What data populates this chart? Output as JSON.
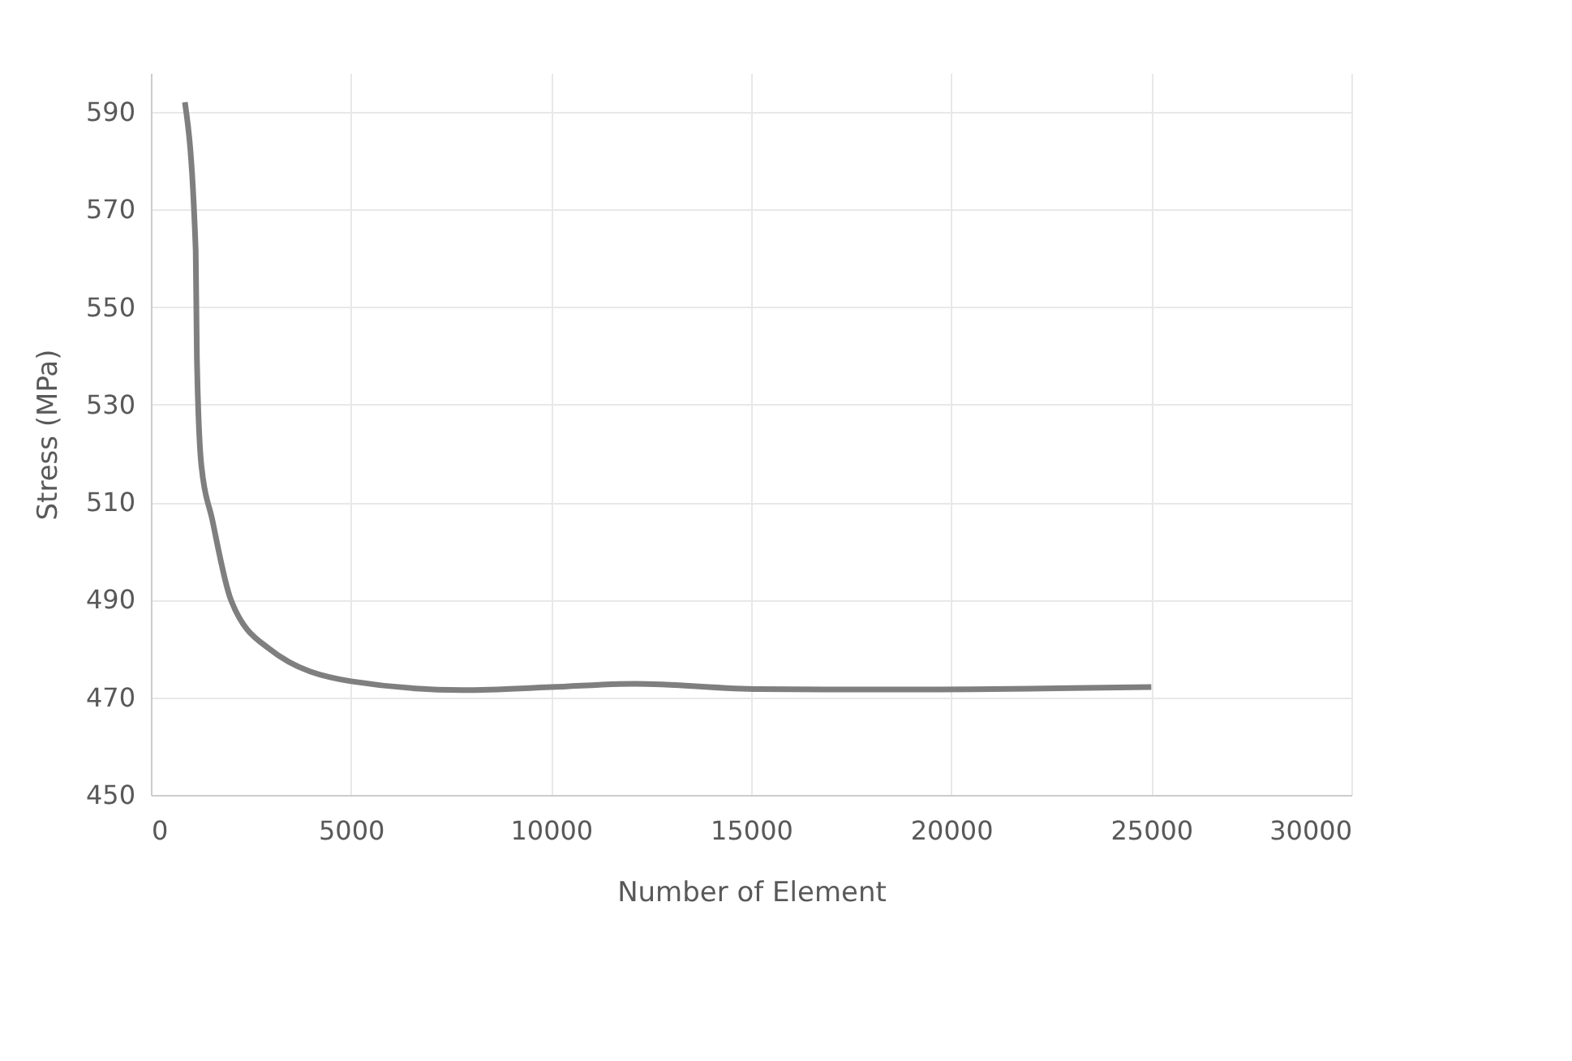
{
  "chart_data": {
    "type": "line",
    "xlabel": "Number of Element",
    "ylabel": "Stress (MPa)",
    "x": [
      850,
      1120,
      1150,
      1260,
      1530,
      2000,
      2950,
      5000,
      7800,
      10000,
      12100,
      15200,
      18600,
      25000
    ],
    "series": [
      {
        "color": "#7f7f7f",
        "values": [
          592,
          561.6,
          539.6,
          517.7,
          506.6,
          490,
          480,
          473.3,
          471.5,
          472.1,
          472.8,
          471.7,
          471.6,
          472.1
        ]
      }
    ],
    "xlim": [
      0,
      30000
    ],
    "xticks": [
      0,
      5000,
      10000,
      15000,
      20000,
      25000,
      30000
    ],
    "ylim": [
      450,
      598
    ],
    "yticks": [
      450,
      470,
      490,
      510,
      530,
      550,
      570,
      590
    ],
    "grid": true,
    "marker": "none",
    "line_style": "solid"
  }
}
